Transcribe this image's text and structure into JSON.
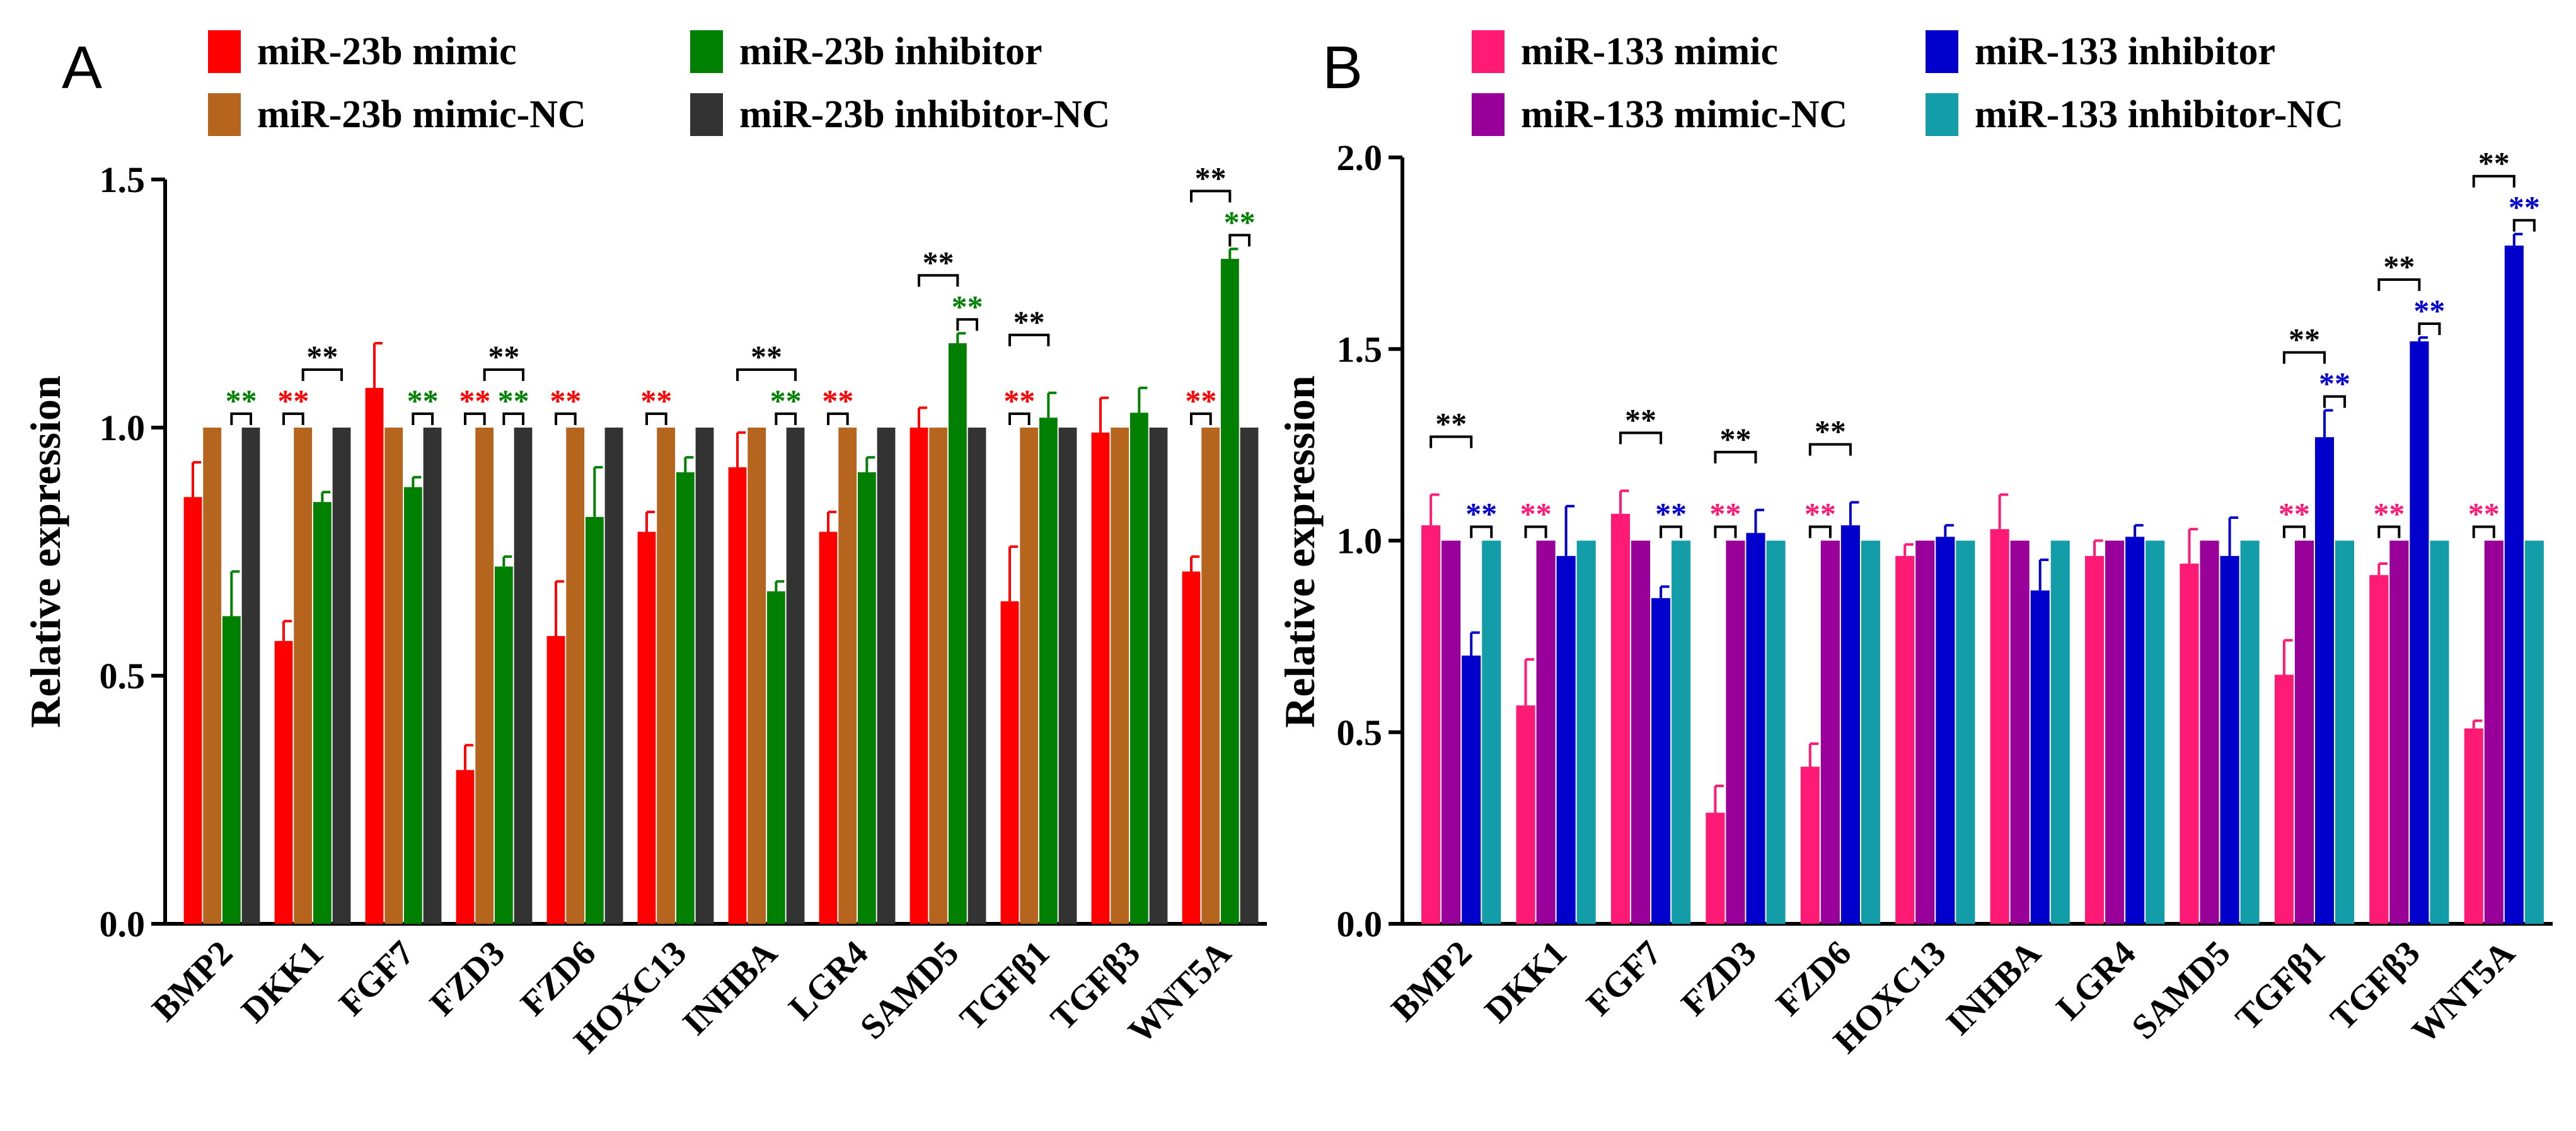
{
  "chart_data": [
    {
      "panel": "A",
      "type": "bar",
      "ylabel": "Relative expression",
      "xlabel": "",
      "ylim": [
        0,
        1.5
      ],
      "yticks": [
        0.0,
        0.5,
        1.0,
        1.5
      ],
      "ytick_labels": [
        "0.0",
        "0.5",
        "1.0",
        "1.5"
      ],
      "categories": [
        "BMP2",
        "DKK1",
        "FGF7",
        "FZD3",
        "FZD6",
        "HOXC13",
        "INHBA",
        "LGR4",
        "SAMD5",
        "TGFβ1",
        "TGFβ3",
        "WNT5A"
      ],
      "series": [
        {
          "name": "miR-23b mimic",
          "color": "#ff0000",
          "values": [
            0.86,
            0.57,
            1.08,
            0.31,
            0.58,
            0.79,
            0.92,
            0.79,
            1.0,
            0.65,
            0.99,
            0.71
          ],
          "errors": [
            0.07,
            0.04,
            0.09,
            0.05,
            0.11,
            0.04,
            0.07,
            0.04,
            0.04,
            0.11,
            0.07,
            0.03
          ]
        },
        {
          "name": "miR-23b mimic-NC",
          "color": "#b5651d",
          "values": [
            1,
            1,
            1,
            1,
            1,
            1,
            1,
            1,
            1,
            1,
            1,
            1
          ],
          "errors": [
            0,
            0,
            0,
            0,
            0,
            0,
            0,
            0,
            0,
            0,
            0,
            0
          ]
        },
        {
          "name": "miR-23b inhibitor",
          "color": "#008000",
          "values": [
            0.62,
            0.85,
            0.88,
            0.72,
            0.82,
            0.91,
            0.67,
            0.91,
            1.17,
            1.02,
            1.03,
            1.34
          ],
          "errors": [
            0.09,
            0.02,
            0.02,
            0.02,
            0.1,
            0.03,
            0.02,
            0.03,
            0.02,
            0.05,
            0.05,
            0.02
          ]
        },
        {
          "name": "miR-23b inhibitor-NC",
          "color": "#333333",
          "values": [
            1,
            1,
            1,
            1,
            1,
            1,
            1,
            1,
            1,
            1,
            1,
            1
          ],
          "errors": [
            0,
            0,
            0,
            0,
            0,
            0,
            0,
            0,
            0,
            0,
            0,
            0
          ]
        }
      ],
      "significance": [
        {
          "category": 0,
          "from": 2,
          "to": 3,
          "label": "**",
          "color": "#008000"
        },
        {
          "category": 1,
          "from": 0,
          "to": 1,
          "label": "**",
          "color": "#ff0000"
        },
        {
          "category": 1,
          "from": 1,
          "to": 3,
          "label": "**",
          "color": "#000000"
        },
        {
          "category": 2,
          "from": 2,
          "to": 3,
          "label": "**",
          "color": "#008000"
        },
        {
          "category": 3,
          "from": 0,
          "to": 1,
          "label": "**",
          "color": "#ff0000"
        },
        {
          "category": 3,
          "from": 2,
          "to": 3,
          "label": "**",
          "color": "#008000"
        },
        {
          "category": 3,
          "from": 1,
          "to": 3,
          "label": "**",
          "color": "#000000"
        },
        {
          "category": 4,
          "from": 0,
          "to": 1,
          "label": "**",
          "color": "#ff0000"
        },
        {
          "category": 5,
          "from": 0,
          "to": 1,
          "label": "**",
          "color": "#ff0000"
        },
        {
          "category": 6,
          "from": 2,
          "to": 3,
          "label": "**",
          "color": "#008000"
        },
        {
          "category": 6,
          "from": 0,
          "to": 3,
          "label": "**",
          "color": "#000000"
        },
        {
          "category": 7,
          "from": 0,
          "to": 1,
          "label": "**",
          "color": "#ff0000"
        },
        {
          "category": 8,
          "from": 2,
          "to": 3,
          "label": "**",
          "color": "#008000"
        },
        {
          "category": 8,
          "from": 0,
          "to": 2,
          "label": "**",
          "color": "#000000"
        },
        {
          "category": 9,
          "from": 0,
          "to": 1,
          "label": "**",
          "color": "#ff0000"
        },
        {
          "category": 9,
          "from": 0,
          "to": 2,
          "label": "**",
          "color": "#000000"
        },
        {
          "category": 11,
          "from": 0,
          "to": 1,
          "label": "**",
          "color": "#ff0000"
        },
        {
          "category": 11,
          "from": 2,
          "to": 3,
          "label": "**",
          "color": "#008000"
        },
        {
          "category": 11,
          "from": 0,
          "to": 2,
          "label": "**",
          "color": "#000000"
        }
      ]
    },
    {
      "panel": "B",
      "type": "bar",
      "ylabel": "Relative expression",
      "xlabel": "",
      "ylim": [
        0,
        2.0
      ],
      "yticks": [
        0.0,
        0.5,
        1.0,
        1.5,
        2.0
      ],
      "ytick_labels": [
        "0.0",
        "0.5",
        "1.0",
        "1.5",
        "2.0"
      ],
      "categories": [
        "BMP2",
        "DKK1",
        "FGF7",
        "FZD3",
        "FZD6",
        "HOXC13",
        "INHBA",
        "LGR4",
        "SAMD5",
        "TGFβ1",
        "TGFβ3",
        "WNT5A"
      ],
      "series": [
        {
          "name": "miR-133 mimic",
          "color": "#ff1a75",
          "values": [
            1.04,
            0.57,
            1.07,
            0.29,
            0.41,
            0.96,
            1.03,
            0.96,
            0.94,
            0.65,
            0.91,
            0.51
          ],
          "errors": [
            0.08,
            0.12,
            0.06,
            0.07,
            0.06,
            0.03,
            0.09,
            0.04,
            0.09,
            0.09,
            0.03,
            0.02
          ]
        },
        {
          "name": "miR-133 mimic-NC",
          "color": "#990099",
          "values": [
            1,
            1,
            1,
            1,
            1,
            1,
            1,
            1,
            1,
            1,
            1,
            1
          ],
          "errors": [
            0,
            0,
            0,
            0,
            0,
            0,
            0,
            0,
            0,
            0,
            0,
            0
          ]
        },
        {
          "name": "miR-133 inhibitor",
          "color": "#0000cc",
          "values": [
            0.7,
            0.96,
            0.85,
            1.02,
            1.04,
            1.01,
            0.87,
            1.01,
            0.96,
            1.27,
            1.52,
            1.77
          ],
          "errors": [
            0.06,
            0.13,
            0.03,
            0.06,
            0.06,
            0.03,
            0.08,
            0.03,
            0.1,
            0.07,
            0.01,
            0.03
          ]
        },
        {
          "name": "miR-133 inhibitor-NC",
          "color": "#139da8",
          "values": [
            1,
            1,
            1,
            1,
            1,
            1,
            1,
            1,
            1,
            1,
            1,
            1
          ],
          "errors": [
            0,
            0,
            0,
            0,
            0,
            0,
            0,
            0,
            0,
            0,
            0,
            0
          ]
        }
      ],
      "significance": [
        {
          "category": 0,
          "from": 2,
          "to": 3,
          "label": "**",
          "color": "#0000cc"
        },
        {
          "category": 0,
          "from": 0,
          "to": 2,
          "label": "**",
          "color": "#000000"
        },
        {
          "category": 1,
          "from": 0,
          "to": 1,
          "label": "**",
          "color": "#ff1a75"
        },
        {
          "category": 2,
          "from": 2,
          "to": 3,
          "label": "**",
          "color": "#0000cc"
        },
        {
          "category": 2,
          "from": 0,
          "to": 2,
          "label": "**",
          "color": "#000000"
        },
        {
          "category": 3,
          "from": 0,
          "to": 1,
          "label": "**",
          "color": "#ff1a75"
        },
        {
          "category": 3,
          "from": 0,
          "to": 2,
          "label": "**",
          "color": "#000000"
        },
        {
          "category": 4,
          "from": 0,
          "to": 1,
          "label": "**",
          "color": "#ff1a75"
        },
        {
          "category": 4,
          "from": 0,
          "to": 2,
          "label": "**",
          "color": "#000000"
        },
        {
          "category": 9,
          "from": 0,
          "to": 1,
          "label": "**",
          "color": "#ff1a75"
        },
        {
          "category": 9,
          "from": 2,
          "to": 3,
          "label": "**",
          "color": "#0000cc"
        },
        {
          "category": 9,
          "from": 0,
          "to": 2,
          "label": "**",
          "color": "#000000"
        },
        {
          "category": 10,
          "from": 0,
          "to": 1,
          "label": "**",
          "color": "#ff1a75"
        },
        {
          "category": 10,
          "from": 2,
          "to": 3,
          "label": "**",
          "color": "#0000cc"
        },
        {
          "category": 10,
          "from": 0,
          "to": 2,
          "label": "**",
          "color": "#000000"
        },
        {
          "category": 11,
          "from": 0,
          "to": 1,
          "label": "**",
          "color": "#ff1a75"
        },
        {
          "category": 11,
          "from": 2,
          "to": 3,
          "label": "**",
          "color": "#0000cc"
        },
        {
          "category": 11,
          "from": 0,
          "to": 2,
          "label": "**",
          "color": "#000000"
        }
      ]
    }
  ]
}
